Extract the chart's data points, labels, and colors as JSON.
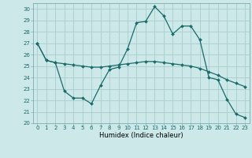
{
  "title": "",
  "xlabel": "Humidex (Indice chaleur)",
  "ylabel": "",
  "background_color": "#cce8e8",
  "grid_color": "#aacccc",
  "line_color": "#1a6b6b",
  "xlim": [
    -0.5,
    23.5
  ],
  "ylim": [
    20,
    30.5
  ],
  "yticks": [
    20,
    21,
    22,
    23,
    24,
    25,
    26,
    27,
    28,
    29,
    30
  ],
  "xticks": [
    0,
    1,
    2,
    3,
    4,
    5,
    6,
    7,
    8,
    9,
    10,
    11,
    12,
    13,
    14,
    15,
    16,
    17,
    18,
    19,
    20,
    21,
    22,
    23
  ],
  "line1_x": [
    0,
    1,
    2,
    3,
    4,
    5,
    6,
    7,
    8,
    9,
    10,
    11,
    12,
    13,
    14,
    15,
    16,
    17,
    18,
    19,
    20,
    21,
    22,
    23
  ],
  "line1_y": [
    27.0,
    25.5,
    25.3,
    22.8,
    22.2,
    22.2,
    21.7,
    23.3,
    24.7,
    24.9,
    26.5,
    28.8,
    28.9,
    30.2,
    29.4,
    27.8,
    28.5,
    28.5,
    27.3,
    24.0,
    23.8,
    22.1,
    20.8,
    20.5
  ],
  "line2_x": [
    0,
    1,
    2,
    3,
    4,
    5,
    6,
    7,
    8,
    9,
    10,
    11,
    12,
    13,
    14,
    15,
    16,
    17,
    18,
    19,
    20,
    21,
    22,
    23
  ],
  "line2_y": [
    27.0,
    25.5,
    25.3,
    25.2,
    25.1,
    25.0,
    24.9,
    24.9,
    25.0,
    25.1,
    25.2,
    25.3,
    25.4,
    25.4,
    25.3,
    25.2,
    25.1,
    25.0,
    24.8,
    24.5,
    24.2,
    23.8,
    23.5,
    23.2
  ],
  "tick_fontsize": 5.0,
  "xlabel_fontsize": 6.0
}
